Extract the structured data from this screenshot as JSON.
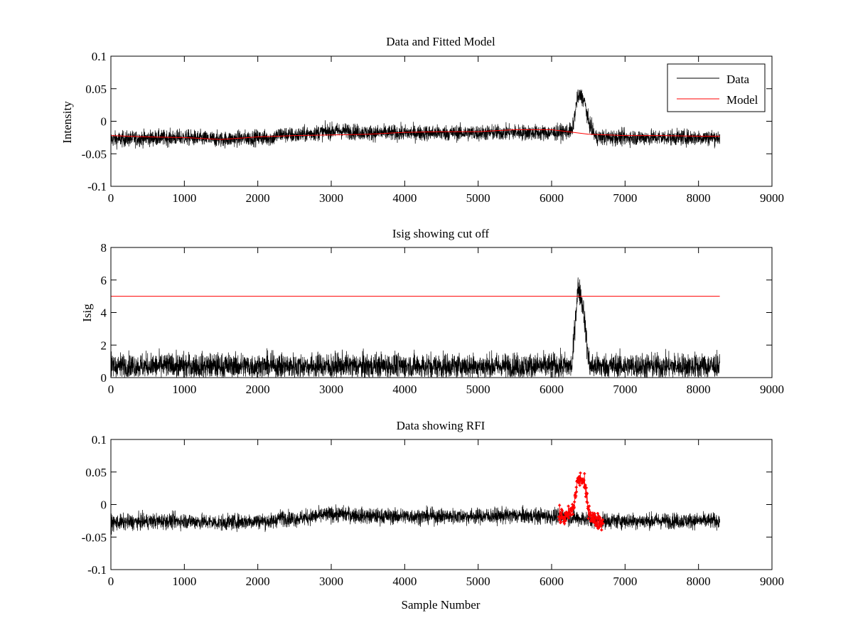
{
  "colors": {
    "data": "#000000",
    "model": "#ff0000",
    "axes": "#000000",
    "background": "#ffffff"
  },
  "chart_data": [
    {
      "type": "line",
      "title": "Data and Fitted Model",
      "xlabel": "",
      "ylabel": "Intensity",
      "xlim": [
        0,
        9000
      ],
      "ylim": [
        -0.1,
        0.1
      ],
      "x_ticks": [
        0,
        1000,
        2000,
        3000,
        4000,
        5000,
        6000,
        7000,
        8000,
        9000
      ],
      "x_tick_labels": [
        "0",
        "1000",
        "2000",
        "3000",
        "4000",
        "5000",
        "6000",
        "7000",
        "8000",
        "9000"
      ],
      "y_ticks": [
        -0.1,
        -0.05,
        0,
        0.05,
        0.1
      ],
      "y_tick_labels": [
        "-0.1",
        "-0.05",
        "0",
        "0.05",
        "0.1"
      ],
      "grid": false,
      "legend_position": "top-right",
      "series": [
        {
          "name": "Data",
          "color": "#000000",
          "x": [
            0,
            500,
            1000,
            1500,
            2000,
            2200,
            2300,
            2500,
            3000,
            3200,
            3500,
            4000,
            4500,
            5000,
            5500,
            6000,
            6280,
            6350,
            6400,
            6450,
            6500,
            6600,
            7000,
            7500,
            8000,
            8290
          ],
          "y": [
            -0.028,
            -0.026,
            -0.025,
            -0.028,
            -0.025,
            -0.026,
            -0.02,
            -0.022,
            -0.015,
            -0.015,
            -0.018,
            -0.018,
            -0.018,
            -0.018,
            -0.017,
            -0.018,
            -0.015,
            0.035,
            0.04,
            0.03,
            0.0,
            -0.025,
            -0.025,
            -0.025,
            -0.025,
            -0.025
          ],
          "noise_amplitude": 0.012
        },
        {
          "name": "Model",
          "color": "#ff0000",
          "x": [
            0,
            500,
            1000,
            1500,
            2000,
            2500,
            3000,
            3500,
            4000,
            4500,
            5000,
            5500,
            6000,
            6500,
            7000,
            7500,
            8000,
            8290
          ],
          "y": [
            -0.022,
            -0.024,
            -0.025,
            -0.028,
            -0.024,
            -0.022,
            -0.021,
            -0.02,
            -0.017,
            -0.016,
            -0.016,
            -0.013,
            -0.013,
            -0.02,
            -0.022,
            -0.022,
            -0.023,
            -0.023
          ]
        }
      ]
    },
    {
      "type": "line",
      "title": "Isig showing cut off",
      "xlabel": "",
      "ylabel": "Isig",
      "xlim": [
        0,
        9000
      ],
      "ylim": [
        0,
        8
      ],
      "x_ticks": [
        0,
        1000,
        2000,
        3000,
        4000,
        5000,
        6000,
        7000,
        8000,
        9000
      ],
      "x_tick_labels": [
        "0",
        "1000",
        "2000",
        "3000",
        "4000",
        "5000",
        "6000",
        "7000",
        "8000",
        "9000"
      ],
      "y_ticks": [
        0,
        2,
        4,
        6,
        8
      ],
      "y_tick_labels": [
        "0",
        "2",
        "4",
        "6",
        "8"
      ],
      "grid": false,
      "series": [
        {
          "color": "#000000",
          "x": [
            0,
            6280,
            6320,
            6360,
            6400,
            6440,
            6480,
            6520,
            8290
          ],
          "y": [
            0.7,
            0.7,
            3.5,
            5.5,
            5.0,
            4.0,
            2.0,
            0.7,
            0.7
          ],
          "noise_amplitude": 0.8
        },
        {
          "color": "#ff0000",
          "x": [
            0,
            8290
          ],
          "y": [
            5,
            5
          ]
        }
      ]
    },
    {
      "type": "scatter",
      "title": "Data showing RFI",
      "xlabel": "Sample Number",
      "ylabel": "",
      "xlim": [
        0,
        9000
      ],
      "ylim": [
        -0.1,
        0.1
      ],
      "x_ticks": [
        0,
        1000,
        2000,
        3000,
        4000,
        5000,
        6000,
        7000,
        8000,
        9000
      ],
      "x_tick_labels": [
        "0",
        "1000",
        "2000",
        "3000",
        "4000",
        "5000",
        "6000",
        "7000",
        "8000",
        "9000"
      ],
      "y_ticks": [
        -0.1,
        -0.05,
        0,
        0.05,
        0.1
      ],
      "y_tick_labels": [
        "-0.1",
        "-0.05",
        "0",
        "0.05",
        "0.1"
      ],
      "grid": false,
      "series": [
        {
          "color": "#000000",
          "x": [
            0,
            500,
            1000,
            1500,
            2000,
            2200,
            2300,
            2500,
            3000,
            3200,
            3500,
            4000,
            4500,
            5000,
            5500,
            6000,
            6100,
            6700,
            7000,
            7500,
            8000,
            8290
          ],
          "y": [
            -0.028,
            -0.026,
            -0.025,
            -0.028,
            -0.025,
            -0.026,
            -0.02,
            -0.022,
            -0.015,
            -0.015,
            -0.018,
            -0.018,
            -0.018,
            -0.018,
            -0.017,
            -0.018,
            -0.018,
            -0.025,
            -0.025,
            -0.025,
            -0.025,
            -0.025
          ],
          "noise_amplitude": 0.012
        },
        {
          "color": "#ff0000",
          "x": [
            6100,
            6200,
            6300,
            6350,
            6400,
            6450,
            6500,
            6550,
            6600,
            6700
          ],
          "y": [
            -0.018,
            -0.02,
            -0.005,
            0.035,
            0.04,
            0.03,
            -0.005,
            -0.02,
            -0.025,
            -0.028
          ],
          "noise_amplitude": 0.012
        }
      ]
    }
  ]
}
